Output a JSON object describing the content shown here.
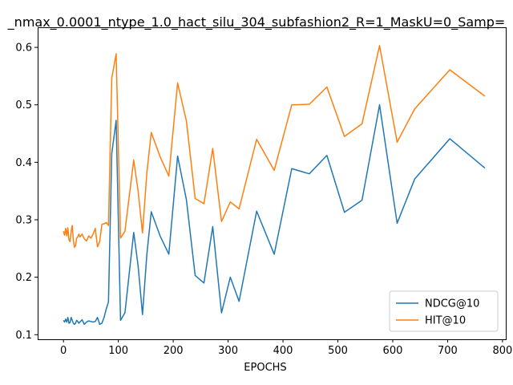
{
  "chart_data": {
    "type": "line",
    "title": "_nmax_0.0001_ntype_1.0_hact_silu_304_subfashion2_R=1_MaskU=0_Samp=",
    "xlabel": "EPOCHS",
    "ylabel": "",
    "xlim": [
      -47,
      806
    ],
    "ylim": [
      0.092,
      0.635
    ],
    "xticks": [
      0,
      100,
      200,
      300,
      400,
      500,
      600,
      700,
      800
    ],
    "yticks": [
      0.1,
      0.2,
      0.3,
      0.4,
      0.5,
      0.6
    ],
    "xtick_labels": [
      "0",
      "100",
      "200",
      "300",
      "400",
      "500",
      "600",
      "700",
      "800"
    ],
    "ytick_labels": [
      "0.1",
      "0.2",
      "0.3",
      "0.4",
      "0.5",
      "0.6"
    ],
    "grid": false,
    "legend_position": "lower-right",
    "series": [
      {
        "name": "NDCG@10",
        "color": "#1f77b4",
        "x": [
          0,
          2,
          4,
          6,
          8,
          10,
          12,
          14,
          16,
          18,
          20,
          22,
          24,
          26,
          28,
          30,
          34,
          38,
          42,
          46,
          50,
          54,
          58,
          62,
          66,
          70,
          74,
          78,
          82,
          88,
          96,
          104,
          112,
          128,
          136,
          144,
          152,
          160,
          176,
          192,
          208,
          224,
          240,
          256,
          272,
          288,
          304,
          320,
          352,
          384,
          416,
          448,
          480,
          512,
          544,
          576,
          608,
          640,
          704,
          768
        ],
        "y": [
          0.125,
          0.122,
          0.127,
          0.122,
          0.13,
          0.12,
          0.121,
          0.13,
          0.125,
          0.12,
          0.118,
          0.12,
          0.125,
          0.123,
          0.12,
          0.122,
          0.126,
          0.118,
          0.122,
          0.124,
          0.123,
          0.122,
          0.123,
          0.13,
          0.118,
          0.12,
          0.13,
          0.145,
          0.157,
          0.415,
          0.473,
          0.125,
          0.138,
          0.278,
          0.22,
          0.135,
          0.24,
          0.314,
          0.272,
          0.24,
          0.411,
          0.335,
          0.203,
          0.19,
          0.288,
          0.138,
          0.2,
          0.158,
          0.315,
          0.24,
          0.389,
          0.38,
          0.412,
          0.313,
          0.334,
          0.5,
          0.294,
          0.371,
          0.441,
          0.39
        ]
      },
      {
        "name": "HIT@10",
        "color": "#ff7f0e",
        "x": [
          0,
          2,
          4,
          6,
          8,
          10,
          12,
          14,
          16,
          18,
          20,
          22,
          24,
          26,
          28,
          30,
          34,
          38,
          42,
          46,
          50,
          54,
          58,
          62,
          66,
          70,
          74,
          78,
          82,
          88,
          96,
          104,
          112,
          128,
          136,
          144,
          152,
          160,
          176,
          192,
          208,
          224,
          240,
          256,
          272,
          288,
          304,
          320,
          352,
          384,
          416,
          448,
          480,
          512,
          544,
          576,
          608,
          640,
          704,
          768
        ],
        "y": [
          0.28,
          0.273,
          0.285,
          0.272,
          0.286,
          0.265,
          0.262,
          0.28,
          0.29,
          0.265,
          0.252,
          0.255,
          0.268,
          0.27,
          0.275,
          0.27,
          0.275,
          0.267,
          0.263,
          0.272,
          0.268,
          0.275,
          0.285,
          0.253,
          0.262,
          0.292,
          0.293,
          0.295,
          0.29,
          0.546,
          0.589,
          0.268,
          0.28,
          0.404,
          0.35,
          0.277,
          0.382,
          0.452,
          0.41,
          0.376,
          0.538,
          0.472,
          0.337,
          0.328,
          0.424,
          0.297,
          0.331,
          0.319,
          0.44,
          0.386,
          0.5,
          0.501,
          0.531,
          0.445,
          0.467,
          0.603,
          0.435,
          0.493,
          0.561,
          0.515
        ]
      }
    ]
  }
}
